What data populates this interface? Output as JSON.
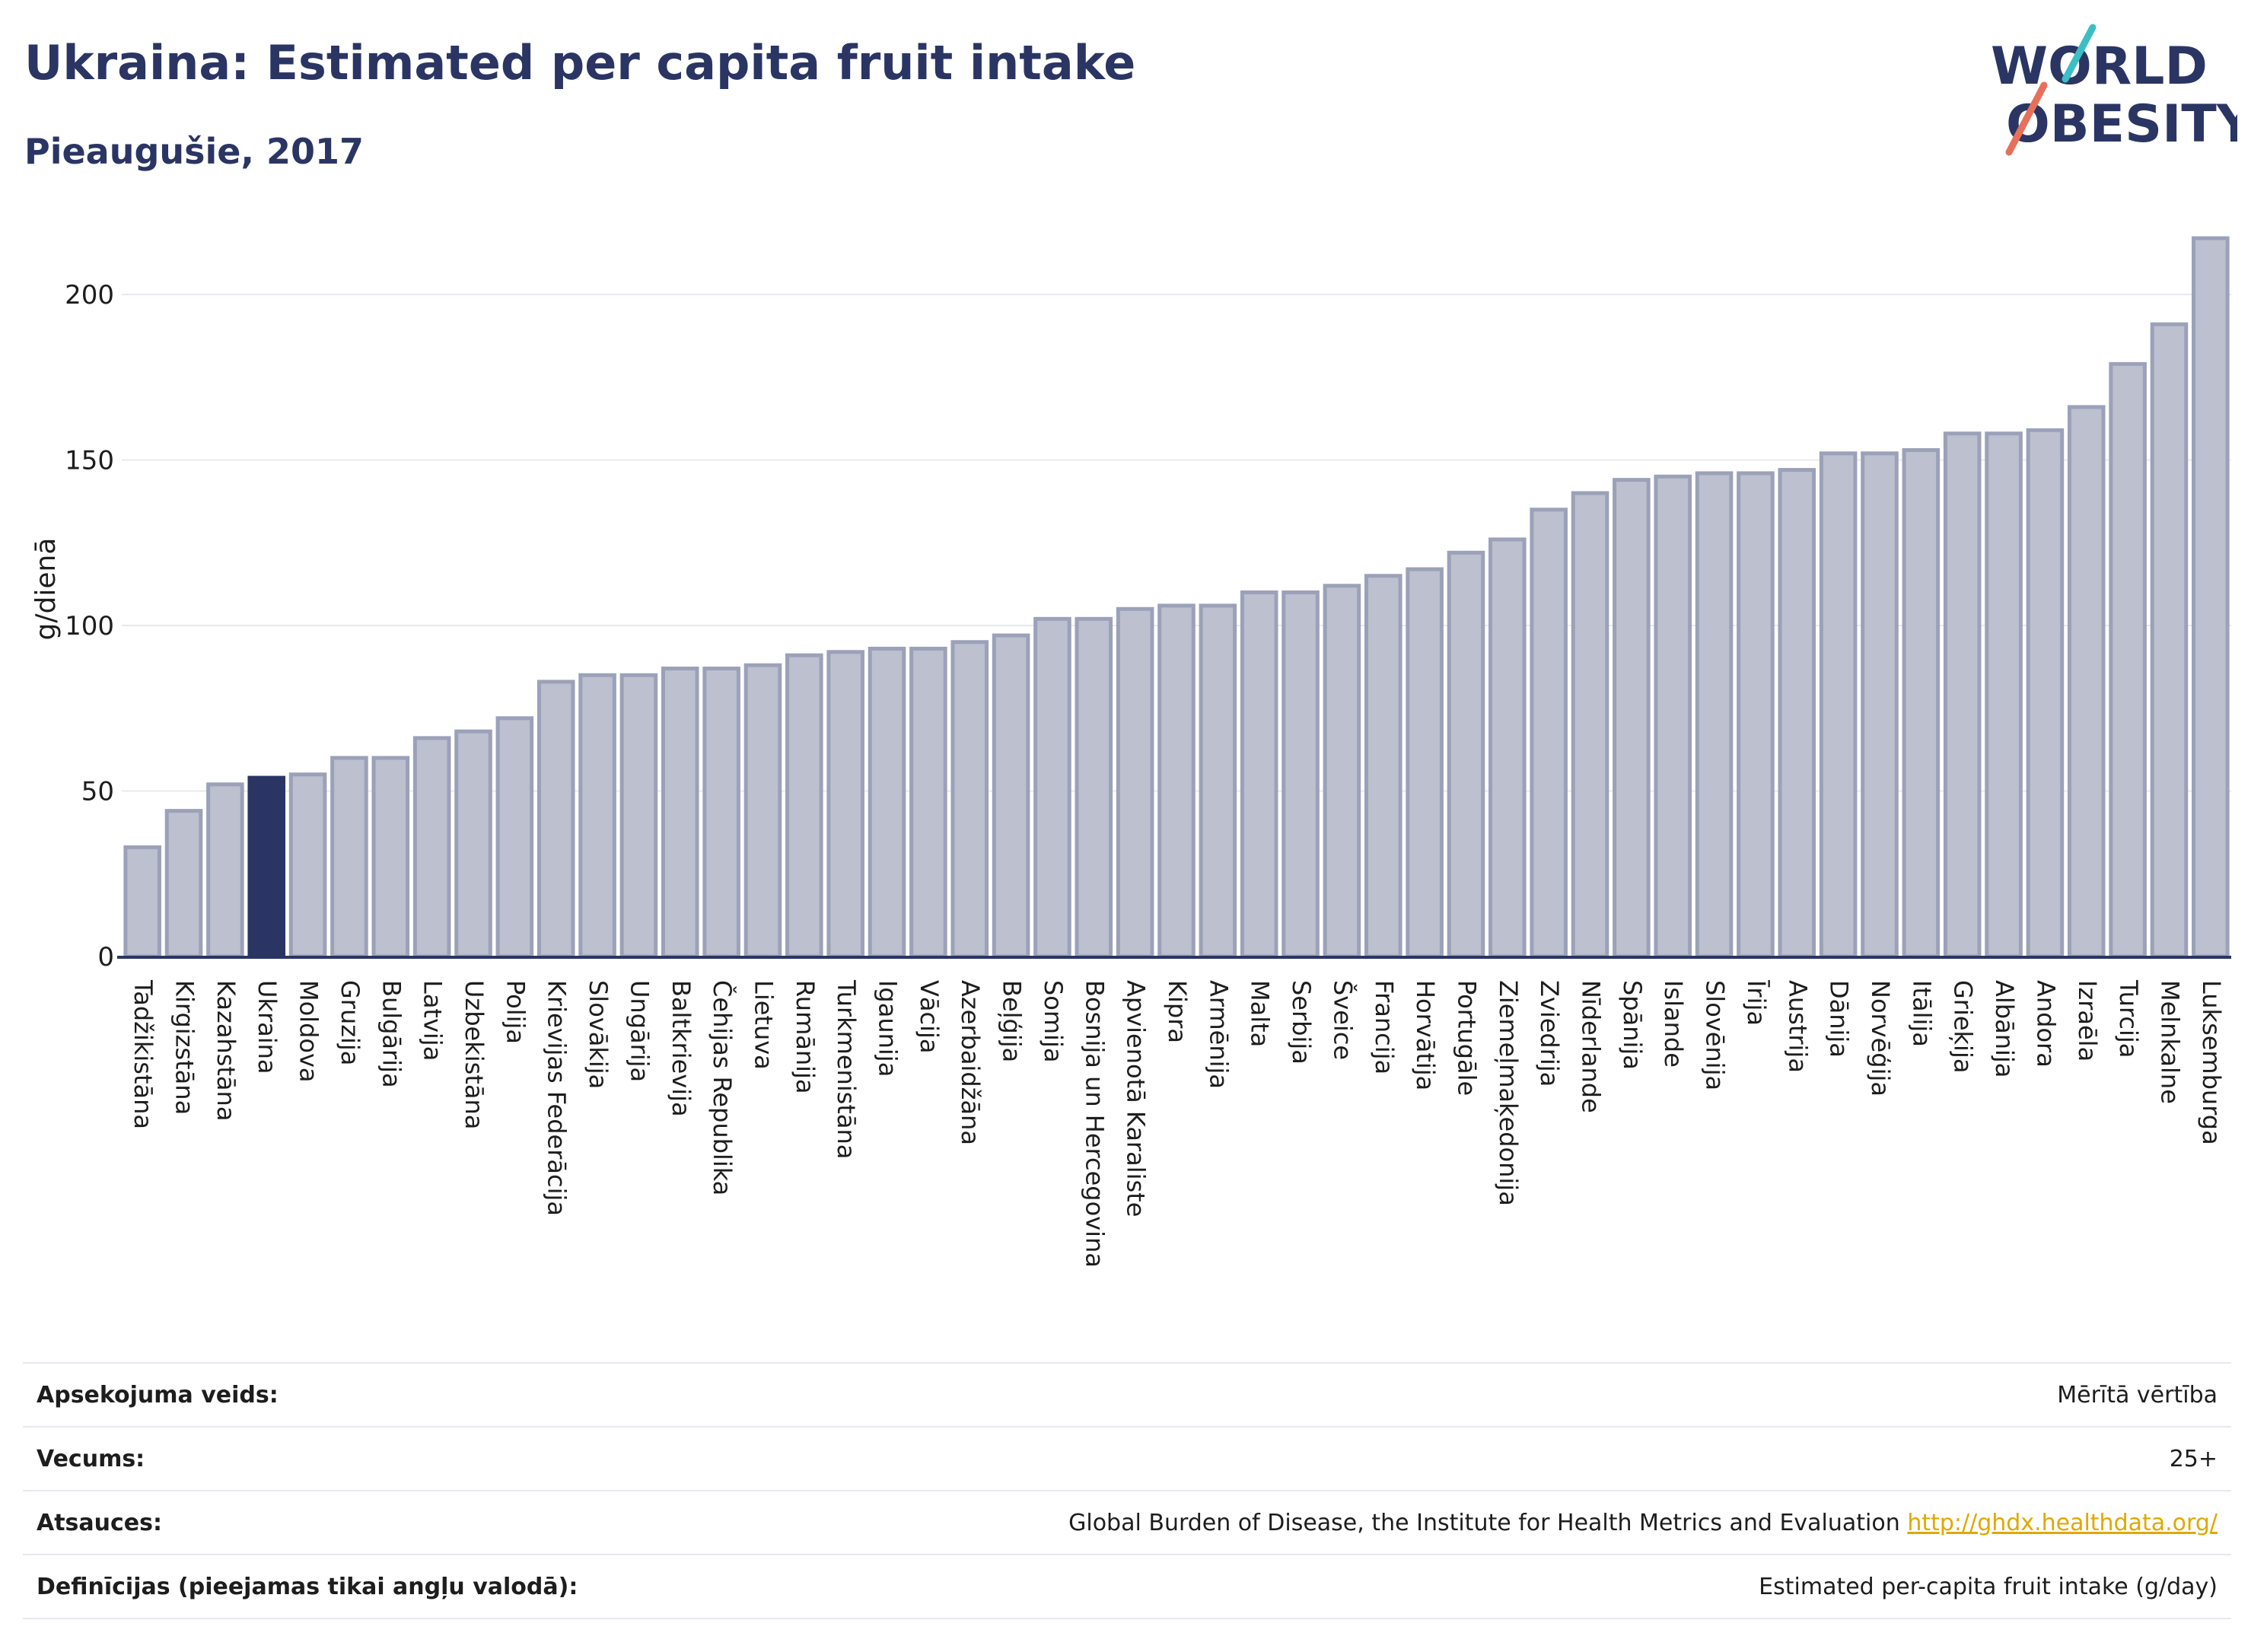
{
  "header": {
    "title": "Ukraina: Estimated per capita fruit intake",
    "subtitle": "Pieaugušie, 2017"
  },
  "logo": {
    "line1": "WORLD",
    "line2": "OBESITY"
  },
  "colors": {
    "highlight": "#2b3564",
    "bar_fill": "#bcc0cf",
    "bar_stroke": "#9ba1b8",
    "grid": "#e8e9ef",
    "axis": "#2b3564",
    "logo_teal": "#3bbfc4",
    "logo_coral": "#e8705a"
  },
  "chart_data": {
    "type": "bar",
    "title": "",
    "xlabel": "",
    "ylabel": "g/dienā",
    "ylim": [
      0,
      220
    ],
    "yticks": [
      0,
      50,
      100,
      150,
      200
    ],
    "grid": true,
    "highlight": "Ukraina",
    "categories": [
      "Tadžikistāna",
      "Kirgizstāna",
      "Kazahstāna",
      "Ukraina",
      "Moldova",
      "Gruzija",
      "Bulgārija",
      "Latvija",
      "Uzbekistāna",
      "Polija",
      "Krievijas Federācija",
      "Slovākija",
      "Ungārija",
      "Baltkrievija",
      "Čehijas Republika",
      "Lietuva",
      "Rumānija",
      "Turkmenistāna",
      "Igaunija",
      "Vācija",
      "Azerbaidžāna",
      "Beļģija",
      "Somija",
      "Bosnija un Hercegovina",
      "Apvienotā Karaliste",
      "Kipra",
      "Armēnija",
      "Malta",
      "Serbija",
      "Šveice",
      "Francija",
      "Horvātija",
      "Portugāle",
      "Ziemeļmaķedonija",
      "Zviedrija",
      "Nīderlande",
      "Spānija",
      "Islande",
      "Slovēnija",
      "Īrija",
      "Austrija",
      "Dānija",
      "Norvēģija",
      "Itālija",
      "Grieķija",
      "Albānija",
      "Andora",
      "Izraēla",
      "Turcija",
      "Melnkalne",
      "Luksemburga"
    ],
    "values": [
      33,
      44,
      52,
      54,
      55,
      60,
      60,
      66,
      68,
      72,
      83,
      85,
      85,
      87,
      87,
      88,
      91,
      92,
      93,
      93,
      95,
      97,
      102,
      102,
      105,
      106,
      106,
      110,
      110,
      112,
      115,
      117,
      122,
      126,
      135,
      140,
      144,
      145,
      146,
      146,
      147,
      152,
      152,
      153,
      158,
      158,
      159,
      166,
      179,
      191,
      217
    ]
  },
  "info": {
    "survey_label": "Apsekojuma veids:",
    "survey_value": "Mērītā vērtība",
    "age_label": "Vecums:",
    "age_value": "25+",
    "source_label": "Atsauces:",
    "source_value": "Global Burden of Disease, the Institute for Health Metrics and Evaluation",
    "source_link": "http://ghdx.healthdata.org/",
    "definition_label": "Definīcijas (pieejamas tikai angļu valodā):",
    "definition_value": "Estimated per-capita fruit intake (g/day)"
  }
}
